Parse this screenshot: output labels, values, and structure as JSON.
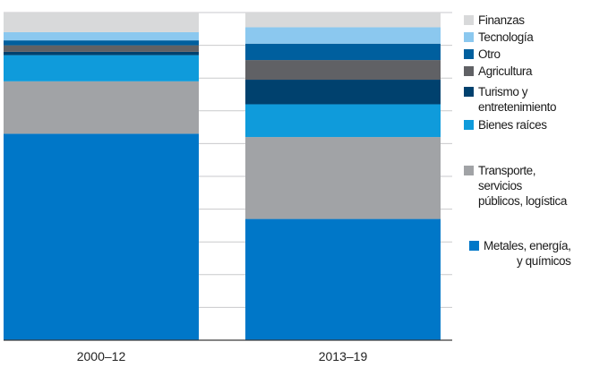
{
  "chart_data": {
    "type": "bar",
    "stacked": true,
    "title": "",
    "xlabel": "",
    "ylabel": "",
    "ylim": [
      0,
      100
    ],
    "grid": true,
    "legend_position": "right",
    "categories": [
      "2000–12",
      "2013–19"
    ],
    "series": [
      {
        "name": "Metales, energía,\ny químicos",
        "color": "#0077C8",
        "values": [
          63,
          37
        ]
      },
      {
        "name": "Transporte,\nservicios\npúblicos, logística",
        "color": "#A1A3A6",
        "values": [
          16,
          25
        ]
      },
      {
        "name": "Bienes raíces",
        "color": "#0F9BDB",
        "values": [
          8,
          10
        ]
      },
      {
        "name": "Turismo y\nentretenimiento",
        "color": "#00416E",
        "values": [
          1,
          7.5
        ]
      },
      {
        "name": "Agricultura",
        "color": "#606165",
        "values": [
          2,
          6
        ]
      },
      {
        "name": "Otro",
        "color": "#005F9E",
        "values": [
          1.5,
          5
        ]
      },
      {
        "name": "Tecnología",
        "color": "#8BC8EF",
        "values": [
          2.5,
          5
        ]
      },
      {
        "name": "Finanzas",
        "color": "#D8D9DA",
        "values": [
          6,
          4.5
        ]
      }
    ]
  }
}
